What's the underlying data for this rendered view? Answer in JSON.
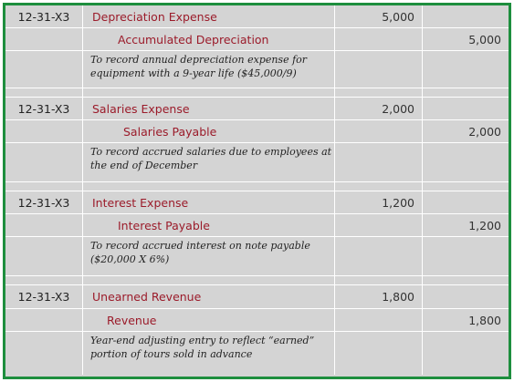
{
  "entries": [
    {
      "date": "12-31-X3",
      "debit_account": "Depreciation Expense",
      "debit_amount": "5,000",
      "credit_account": "Accumulated Depreciation",
      "credit_amount": "5,000",
      "memo_line1": "To record annual depreciation expense for",
      "memo_line2": "equipment with a 9-year life ($45,000/9)"
    },
    {
      "date": "12-31-X3",
      "debit_account": "Salaries Expense",
      "debit_amount": "2,000",
      "credit_account": "Salaries Payable",
      "credit_amount": "2,000",
      "memo_line1": "To record accrued salaries due to employees at",
      "memo_line2": "the end of December"
    },
    {
      "date": "12-31-X3",
      "debit_account": "Interest Expense",
      "debit_amount": "1,200",
      "credit_account": "Interest Payable",
      "credit_amount": "1,200",
      "memo_line1": "To record accrued interest on note payable",
      "memo_line2": "($20,000 X 6%)"
    },
    {
      "date": "12-31-X3",
      "debit_account": "Unearned Revenue",
      "debit_amount": "1,800",
      "credit_account": "Revenue",
      "credit_amount": "1,800",
      "memo_line1": "Year-end adjusting entry to reflect “earned”",
      "memo_line2": "portion of tours sold in advance"
    }
  ],
  "colors": {
    "border": "#1e8e3e",
    "cell_background": "#d4d4d4",
    "account_text": "#9b1b2a"
  }
}
